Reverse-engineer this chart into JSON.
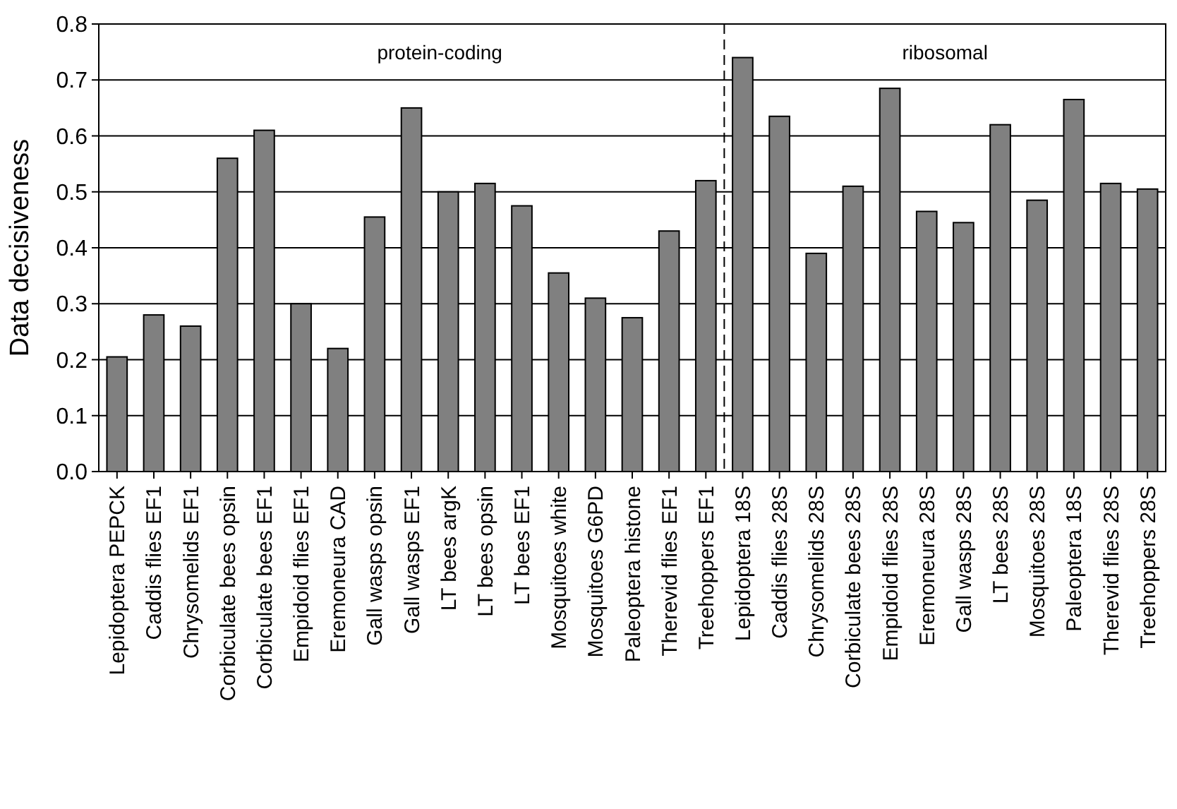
{
  "chart_data": {
    "type": "bar",
    "ylabel": "Data decisiveness",
    "categories": [
      "Lepidoptera PEPCK",
      "Caddis flies EF1",
      "Chrysomelids EF1",
      "Corbiculate bees opsin",
      "Corbiculate bees EF1",
      "Empidoid flies EF1",
      "Eremoneura CAD",
      "Gall wasps opsin",
      "Gall wasps EF1",
      "LT bees argK",
      "LT bees opsin",
      "LT bees EF1",
      "Mosquitoes white",
      "Mosquitoes G6PD",
      "Paleoptera histone",
      "Therevid flies EF1",
      "Treehoppers EF1",
      "Lepidoptera 18S",
      "Caddis flies 28S",
      "Chrysomelids 28S",
      "Corbiculate bees 28S",
      "Empidoid flies 28S",
      "Eremoneura 28S",
      "Gall wasps 28S",
      "LT bees 28S",
      "Mosquitoes 28S",
      "Paleoptera 18S",
      "Therevid flies 28S",
      "Treehoppers 28S"
    ],
    "values": [
      0.205,
      0.28,
      0.26,
      0.56,
      0.61,
      0.3,
      0.22,
      0.455,
      0.65,
      0.5,
      0.515,
      0.475,
      0.355,
      0.31,
      0.275,
      0.43,
      0.52,
      0.74,
      0.635,
      0.39,
      0.51,
      0.685,
      0.465,
      0.445,
      0.62,
      0.485,
      0.665,
      0.515,
      0.505
    ],
    "color": "#808080",
    "ylim": [
      0,
      0.8
    ],
    "yticks": [
      {
        "value": 0,
        "label": "0.0"
      },
      0.1,
      0.2,
      0.3,
      0.4,
      0.5,
      0.6,
      0.7,
      0.8
    ],
    "grid": "y",
    "ref_lines": [
      {
        "axis": "x",
        "value": "Treehoppers EF1",
        "line_style": "dashed"
      }
    ],
    "annotations": [
      "protein-coding",
      "ribosomal"
    ]
  }
}
